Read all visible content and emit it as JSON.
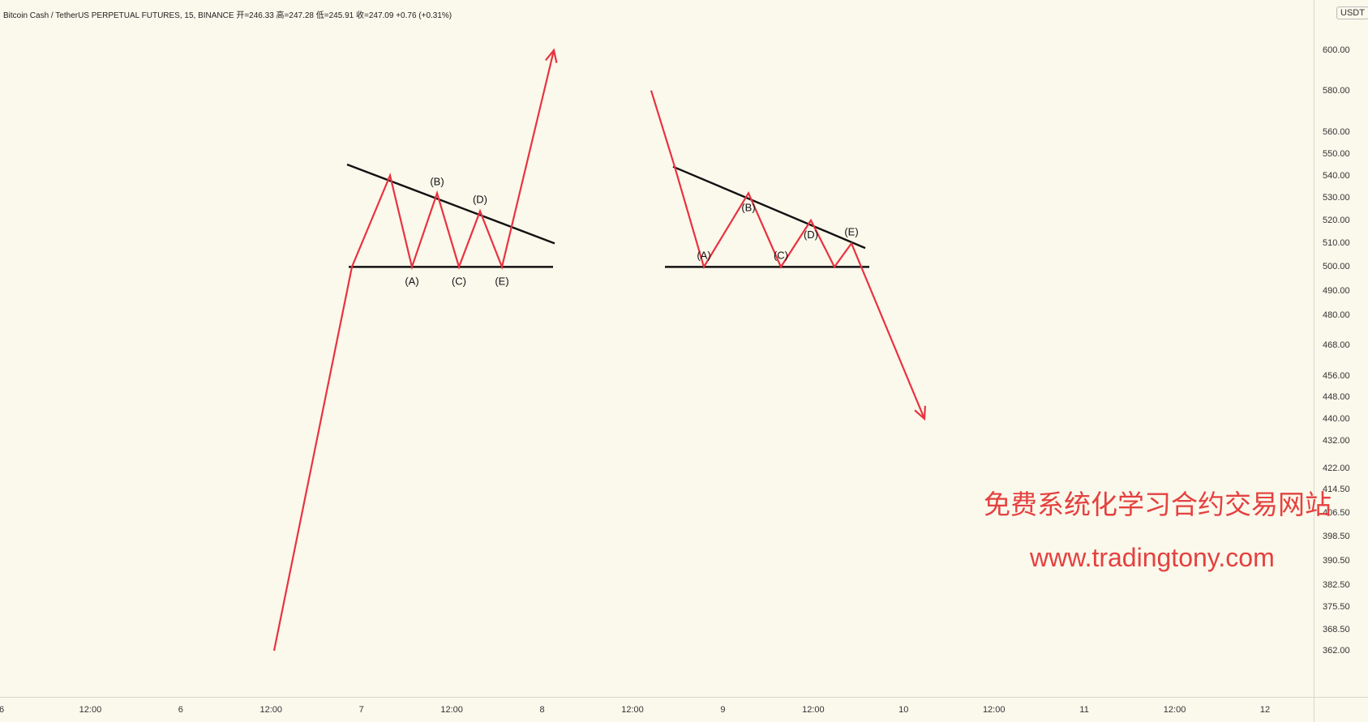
{
  "legend": {
    "symbol": "Bitcoin Cash / TetherUS PERPETUAL FUTURES, 15, BINANCE",
    "open": "开=246.33",
    "high": "高=247.28",
    "low": "低=245.91",
    "close": "收=247.09",
    "change": "+0.76 (+0.31%)"
  },
  "currency": "USDT",
  "watermark": {
    "chinese": "免费系统化学习合约交易网站",
    "url": "www.tradingtony.com"
  },
  "colors": {
    "background": "#fbf8ec",
    "pattern": "#e8333f",
    "trendline": "#111111",
    "watermark": "#e4413f"
  },
  "chart_data": {
    "type": "line",
    "y_scale": "log",
    "price_ticks": [
      "600.00",
      "580.00",
      "560.00",
      "550.00",
      "540.00",
      "530.00",
      "520.00",
      "510.00",
      "500.00",
      "490.00",
      "480.00",
      "468.00",
      "456.00",
      "448.00",
      "440.00",
      "432.00",
      "422.00",
      "414.50",
      "406.50",
      "398.50",
      "390.50",
      "382.50",
      "375.50",
      "368.50",
      "362.00"
    ],
    "time_ticks": [
      "6",
      "12:00",
      "6",
      "12:00",
      "7",
      "12:00",
      "8",
      "12:00",
      "9",
      "12:00",
      "10",
      "12:00",
      "11",
      "12:00",
      "12"
    ],
    "patterns": [
      {
        "name": "bullish-triangle",
        "zigzag": [
          362,
          500,
          540,
          500,
          532,
          500,
          524,
          500,
          600
        ],
        "upper_line": [
          545,
          510
        ],
        "lower_line": [
          500,
          500
        ],
        "labels": [
          {
            "text": "(A)",
            "anchor": "low"
          },
          {
            "text": "(B)",
            "anchor": "high"
          },
          {
            "text": "(C)",
            "anchor": "low"
          },
          {
            "text": "(D)",
            "anchor": "high"
          },
          {
            "text": "(E)",
            "anchor": "low"
          }
        ]
      },
      {
        "name": "bearish-triangle",
        "zigzag": [
          580,
          544,
          500,
          532,
          500,
          520,
          500,
          510,
          440
        ],
        "upper_line": [
          544,
          508
        ],
        "lower_line": [
          500,
          500
        ],
        "labels": [
          {
            "text": "(A)",
            "anchor": "high"
          },
          {
            "text": "(B)",
            "anchor": "low"
          },
          {
            "text": "(C)",
            "anchor": "high"
          },
          {
            "text": "(D)",
            "anchor": "low"
          },
          {
            "text": "(E)",
            "anchor": "high"
          }
        ]
      }
    ]
  }
}
